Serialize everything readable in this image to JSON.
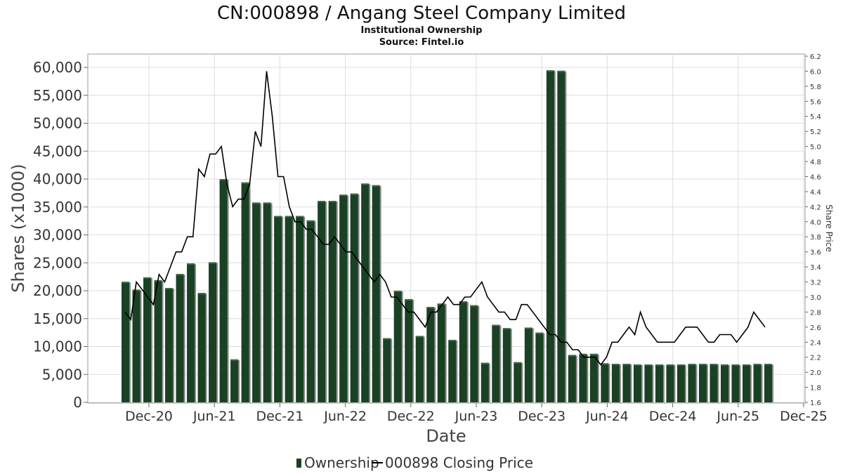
{
  "title": "CN:000898 / Angang Steel Company Limited",
  "subtitle": "Institutional Ownership",
  "source": "Source: Fintel.io",
  "chart_data": {
    "type": "bar",
    "xlabel": "Date",
    "ylabel": "Shares (x1000)",
    "y2label": "Share Price",
    "x_ticks": [
      "Dec-20",
      "Jun-21",
      "Dec-21",
      "Jun-22",
      "Dec-22",
      "Jun-23",
      "Dec-23",
      "Jun-24",
      "Dec-24",
      "Jun-25",
      "Dec-25"
    ],
    "ylim": [
      0,
      62000
    ],
    "y_ticks": [
      0,
      5000,
      10000,
      15000,
      20000,
      25000,
      30000,
      35000,
      40000,
      45000,
      50000,
      55000,
      60000
    ],
    "y_tick_labels": [
      "0",
      "5,000",
      "10,000",
      "15,000",
      "20,000",
      "25,000",
      "30,000",
      "35,000",
      "40,000",
      "45,000",
      "50,000",
      "55,000",
      "60,000"
    ],
    "y2lim": [
      1.6,
      6.2
    ],
    "y2_ticks": [
      "1.6",
      "1.8",
      "2.0",
      "2.2",
      "2.4",
      "2.6",
      "2.8",
      "3.0",
      "3.2",
      "3.4",
      "3.6",
      "3.8",
      "4.0",
      "4.2",
      "4.4",
      "4.6",
      "4.8",
      "5.0",
      "5.2",
      "5.4",
      "5.6",
      "5.8",
      "6.0",
      "6.2"
    ],
    "grid": true,
    "legend_position": "bottom",
    "colors": {
      "bar": "#1a4124",
      "bar_shadow": "#8a8a8a",
      "line": "#000000"
    },
    "series": [
      {
        "name": "Ownership",
        "type": "bar",
        "values": [
          21600,
          20200,
          22400,
          21900,
          20500,
          23000,
          24900,
          19600,
          25100,
          40000,
          7700,
          39400,
          35800,
          35800,
          33400,
          33400,
          33400,
          32600,
          36100,
          36100,
          37200,
          37400,
          39200,
          38900,
          11500,
          20000,
          18500,
          11900,
          17100,
          17700,
          11200,
          18100,
          17400,
          7100,
          13900,
          13300,
          7200,
          13400,
          12500,
          59500,
          59400,
          8500,
          8700,
          8700,
          7000,
          6900,
          6900,
          6800,
          6800,
          6800,
          6800,
          6800,
          6900,
          6900,
          6900,
          6800,
          6800,
          6800,
          6900,
          6900
        ]
      },
      {
        "name": "000898 Closing Price",
        "type": "line",
        "values": [
          2.8,
          2.7,
          3.2,
          3.1,
          3.0,
          2.9,
          3.3,
          3.2,
          3.4,
          3.6,
          3.6,
          3.8,
          3.8,
          4.7,
          4.6,
          4.9,
          4.9,
          5.0,
          4.5,
          4.2,
          4.3,
          4.3,
          4.5,
          5.2,
          5.0,
          6.0,
          5.4,
          4.6,
          4.6,
          4.2,
          4.0,
          4.0,
          3.9,
          3.9,
          3.8,
          3.7,
          3.7,
          3.8,
          3.7,
          3.6,
          3.6,
          3.5,
          3.4,
          3.3,
          3.2,
          3.3,
          3.2,
          3.0,
          3.0,
          2.9,
          2.8,
          2.8,
          2.7,
          2.6,
          2.8,
          2.8,
          2.9,
          3.0,
          2.9,
          2.9,
          3.0,
          3.0,
          3.1,
          3.2,
          3.0,
          2.9,
          2.8,
          2.8,
          2.7,
          2.7,
          2.9,
          2.9,
          2.8,
          2.7,
          2.6,
          2.5,
          2.5,
          2.4,
          2.4,
          2.3,
          2.3,
          2.2,
          2.2,
          2.2,
          2.1,
          2.2,
          2.4,
          2.4,
          2.5,
          2.6,
          2.5,
          2.8,
          2.6,
          2.5,
          2.4,
          2.4,
          2.4,
          2.4,
          2.5,
          2.6,
          2.6,
          2.6,
          2.5,
          2.4,
          2.4,
          2.5,
          2.5,
          2.5,
          2.4,
          2.5,
          2.6,
          2.8,
          2.7,
          2.6
        ]
      }
    ]
  }
}
